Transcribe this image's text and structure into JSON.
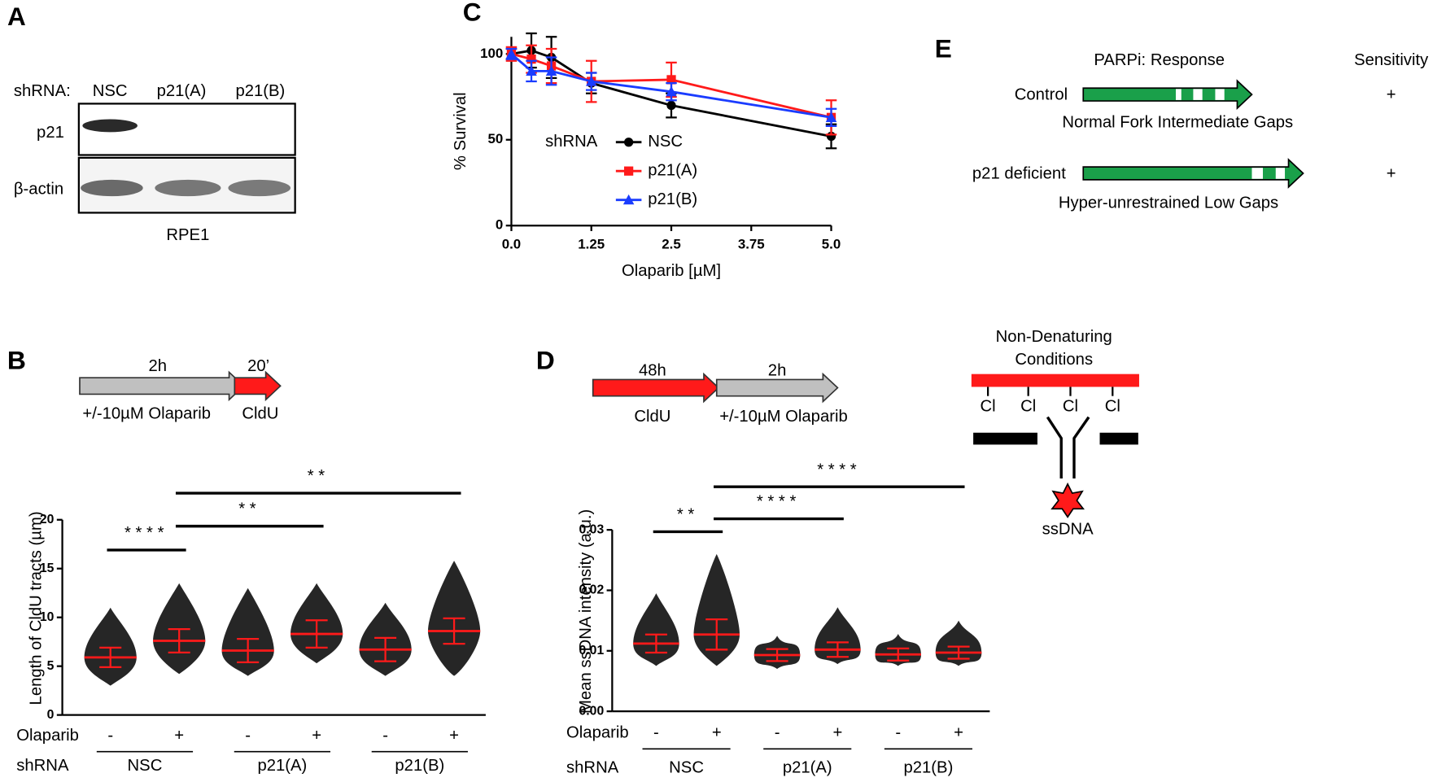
{
  "panel_a": {
    "panel": "A",
    "shrna_label": "shRNA:",
    "lanes": [
      "NSC",
      "p21(A)",
      "p21(B)"
    ],
    "rows": [
      "p21",
      "β-actin"
    ],
    "cell_line": "RPE1"
  },
  "panel_b_protocol": {
    "panel": "B",
    "steps": [
      {
        "time": "2h",
        "label": "+/-10µM Olaparib"
      },
      {
        "time": "20’",
        "label": "CldU"
      }
    ]
  },
  "panel_d_protocol": {
    "panel": "D",
    "steps": [
      {
        "time": "48h",
        "label": "CldU"
      },
      {
        "time": "2h",
        "label": "+/-10µM Olaparib"
      }
    ],
    "condition": [
      "Non-Denaturing",
      "Conditions"
    ],
    "sites": [
      "Cl",
      "Cl",
      "Cl",
      "Cl"
    ],
    "target": "ssDNA"
  },
  "panel_e": {
    "panel": "E",
    "header": "PARPi: Response",
    "sensitivity_header": "Sensitivity",
    "rows": [
      {
        "label": "Control",
        "description": "Normal Fork Intermediate Gaps",
        "sensitivity": "+"
      },
      {
        "label": "p21 deficient",
        "description": "Hyper-unrestrained Low Gaps",
        "sensitivity": "+"
      }
    ]
  },
  "chart_data": [
    {
      "type": "line",
      "panel": "C",
      "y_label": "% Survival",
      "x_label": "Olaparib [µM]",
      "legend_title": "shRNA",
      "x": [
        0,
        0.3125,
        0.625,
        1.25,
        2.5,
        5
      ],
      "xlim": [
        0,
        5
      ],
      "xticks": [
        {
          "value": 0,
          "label": "0.0"
        },
        1.25,
        2.5,
        3.75,
        {
          "value": 5,
          "label": "5.0"
        }
      ],
      "ylim": [
        0,
        110
      ],
      "yticks": [
        0,
        50,
        100
      ],
      "series": [
        {
          "name": "NSC",
          "color": "#000000",
          "marker": "circle",
          "values": [
            100,
            102,
            98,
            83,
            70,
            52
          ],
          "errors": [
            3,
            10,
            12,
            6,
            7,
            7
          ]
        },
        {
          "name": "p21(A)",
          "color": "#ff1a1a",
          "marker": "square",
          "values": [
            100,
            97,
            93,
            84,
            85,
            63
          ],
          "errors": [
            4,
            8,
            10,
            12,
            10,
            10
          ]
        },
        {
          "name": "p21(B)",
          "color": "#1a3cff",
          "marker": "triangle",
          "values": [
            100,
            90,
            90,
            84,
            78,
            63
          ],
          "errors": [
            3,
            6,
            8,
            5,
            5,
            5
          ]
        }
      ]
    },
    {
      "type": "dotplot",
      "panel": "B",
      "y_label": "Length of CldU tracts (µm)",
      "category_label": "Olaparib",
      "categories": [
        "-",
        "+",
        "-",
        "+",
        "-",
        "+"
      ],
      "group_label": "shRNA",
      "groups": [
        "NSC",
        "p21(A)",
        "p21(B)"
      ],
      "ylim": [
        0,
        20
      ],
      "yticks": [
        0,
        5,
        10,
        15,
        20
      ],
      "color": "#000000",
      "mean_color": "#ff1a1a",
      "values": [
        5.9,
        7.6,
        6.6,
        8.3,
        6.7,
        8.6
      ],
      "errors": [
        1.0,
        1.2,
        1.2,
        1.4,
        1.2,
        1.3
      ],
      "min": [
        3.0,
        4.2,
        4.0,
        5.3,
        4.0,
        4.0
      ],
      "max": [
        11.0,
        13.5,
        13.0,
        13.5,
        11.5,
        15.8
      ],
      "significance": [
        {
          "between": [
            0,
            1
          ],
          "label": "****"
        },
        {
          "between": [
            1,
            3
          ],
          "label": "**"
        },
        {
          "between": [
            1,
            5
          ],
          "label": "**"
        }
      ]
    },
    {
      "type": "dotplot",
      "panel": "D",
      "y_label": "Mean ssDNA intensity (a.u.)",
      "category_label": "Olaparib",
      "categories": [
        "-",
        "+",
        "-",
        "+",
        "-",
        "+"
      ],
      "group_label": "shRNA",
      "groups": [
        "NSC",
        "p21(A)",
        "p21(B)"
      ],
      "ylim": [
        0,
        0.03
      ],
      "yticks": [
        {
          "value": 0,
          "label": "0.00"
        },
        0.01,
        0.02,
        0.03
      ],
      "color": "#000000",
      "mean_color": "#ff1a1a",
      "values": [
        0.0112,
        0.0127,
        0.0093,
        0.0102,
        0.0094,
        0.0097
      ],
      "errors": [
        0.0015,
        0.0025,
        0.001,
        0.0012,
        0.001,
        0.001
      ],
      "min": [
        0.0075,
        0.0075,
        0.007,
        0.0078,
        0.0075,
        0.0075
      ],
      "max": [
        0.0195,
        0.026,
        0.0125,
        0.0172,
        0.0128,
        0.015
      ],
      "significance": [
        {
          "between": [
            0,
            1
          ],
          "label": "**"
        },
        {
          "between": [
            1,
            3
          ],
          "label": "****"
        },
        {
          "between": [
            1,
            5
          ],
          "label": "****"
        }
      ]
    }
  ]
}
